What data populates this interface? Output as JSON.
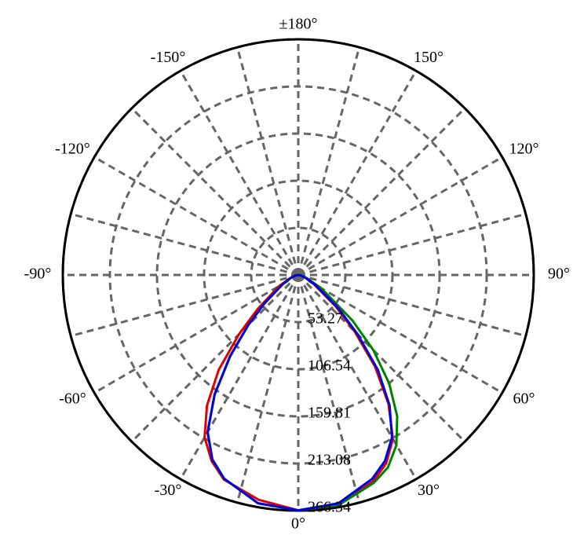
{
  "chart_data": {
    "type": "polar",
    "x": [
      -90,
      -80,
      -70,
      -60,
      -50,
      -45,
      -40,
      -35,
      -30,
      -25,
      -20,
      -10,
      0,
      10,
      20,
      25,
      30,
      35,
      40,
      45,
      50,
      60,
      70,
      80,
      90
    ],
    "series": [
      {
        "color": "#e00000",
        "values": [
          0,
          3,
          9,
          25,
          60,
          95,
          140,
          180,
          212,
          232,
          246,
          258,
          266,
          264,
          248,
          235,
          214,
          178,
          135,
          90,
          55,
          20,
          8,
          3,
          0
        ]
      },
      {
        "color": "#008000",
        "values": [
          0,
          3,
          8,
          20,
          50,
          80,
          120,
          165,
          205,
          230,
          245,
          262,
          266,
          264,
          250,
          240,
          222,
          195,
          160,
          120,
          80,
          30,
          10,
          3,
          0
        ]
      },
      {
        "color": "#0000e0",
        "values": [
          0,
          3,
          8,
          20,
          50,
          80,
          120,
          165,
          205,
          230,
          245,
          262,
          266,
          262,
          245,
          232,
          212,
          180,
          140,
          95,
          60,
          22,
          8,
          3,
          0
        ]
      }
    ],
    "rlim": [
      0,
      266.34
    ],
    "rticks": [
      53.27,
      106.54,
      159.81,
      213.08,
      266.34
    ],
    "xticks": [
      {
        "value": 0,
        "label": "0°"
      },
      {
        "value": 30,
        "label": "30°"
      },
      {
        "value": 60,
        "label": "60°"
      },
      {
        "value": 90,
        "label": "90°"
      },
      {
        "value": 120,
        "label": "120°"
      },
      {
        "value": 150,
        "label": "150°"
      },
      {
        "value": 180,
        "label": "±180°"
      },
      {
        "value": -150,
        "label": "-150°"
      },
      {
        "value": -120,
        "label": "-120°"
      },
      {
        "value": -90,
        "label": "-90°"
      },
      {
        "value": -60,
        "label": "-60°"
      },
      {
        "value": -30,
        "label": "-30°"
      }
    ],
    "minor_xticks": [
      -165,
      -135,
      -105,
      -75,
      -45,
      -15,
      15,
      45,
      75,
      105,
      135,
      165
    ],
    "grid": true
  }
}
